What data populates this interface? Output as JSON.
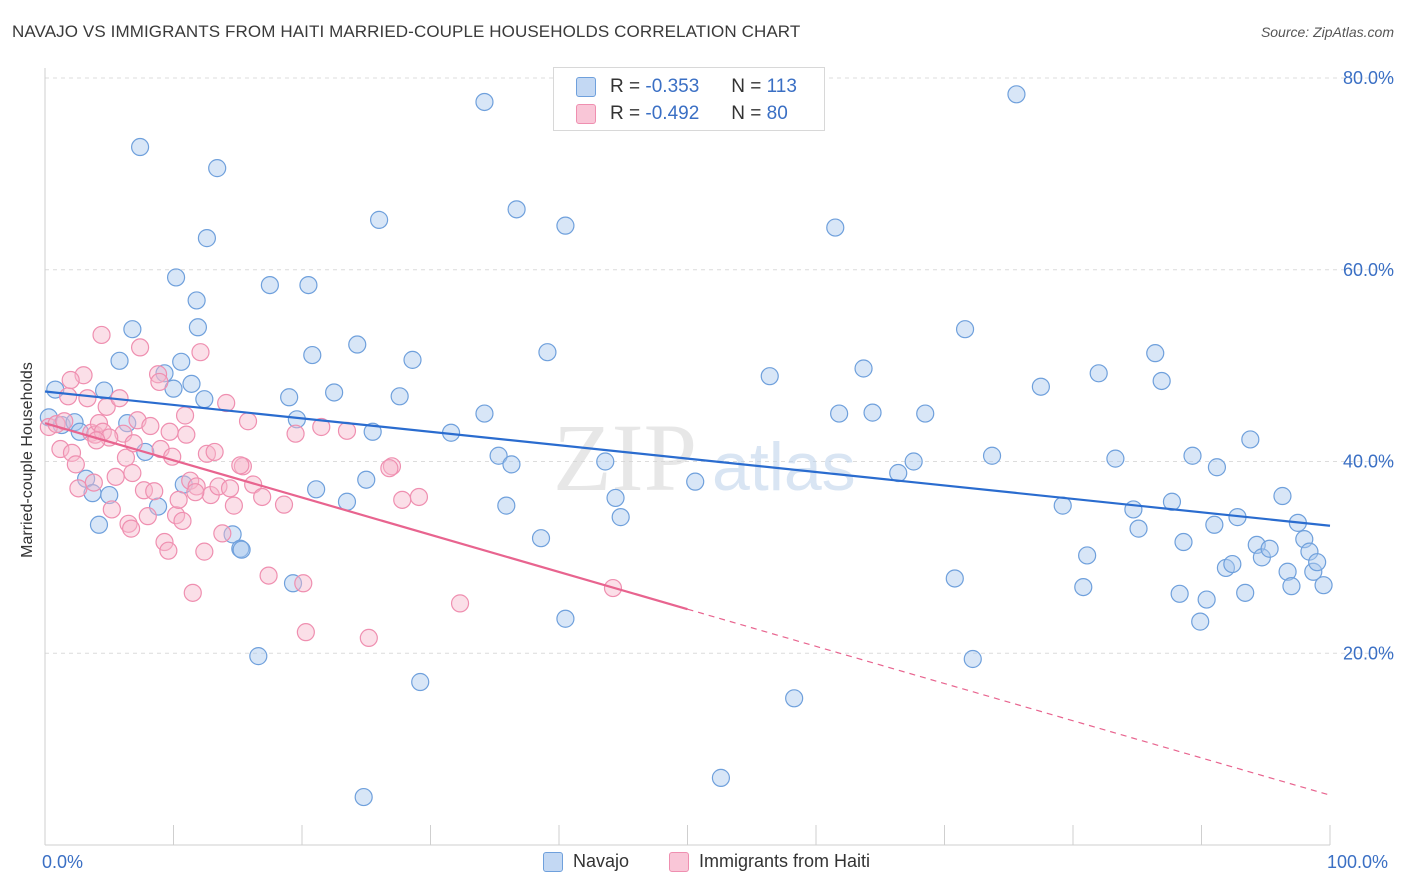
{
  "title": "NAVAJO VS IMMIGRANTS FROM HAITI MARRIED-COUPLE HOUSEHOLDS CORRELATION CHART",
  "source": "Source: ZipAtlas.com",
  "watermark": {
    "zip": "ZIP",
    "atlas": "atlas"
  },
  "legend": {
    "navajo": {
      "r_label": "R =",
      "r_value": "-0.353",
      "n_label": "N =",
      "n_value": "113"
    },
    "haiti": {
      "r_label": "R =",
      "r_value": "-0.492",
      "n_label": "N =",
      "n_value": "80"
    }
  },
  "colors": {
    "navajo": "#6fa0dc",
    "navajo_line": "#2a6ccf",
    "haiti": "#ef8fb0",
    "haiti_line": "#e8648f",
    "axis_text": "#3a6fc4"
  },
  "chart_data": {
    "type": "scatter",
    "title": "NAVAJO VS IMMIGRANTS FROM HAITI MARRIED-COUPLE HOUSEHOLDS CORRELATION CHART",
    "xlabel": "",
    "ylabel": "Married-couple Households",
    "xlim": [
      0,
      100
    ],
    "ylim": [
      0,
      80
    ],
    "x_tick_labels": [
      "0.0%",
      "100.0%"
    ],
    "y_ticks": [
      20,
      40,
      60,
      80
    ],
    "y_tick_labels": [
      "20.0%",
      "40.0%",
      "60.0%",
      "80.0%"
    ],
    "grid": true,
    "legend_position": "top-center",
    "series": [
      {
        "name": "Navajo",
        "trend": {
          "x": [
            0,
            100
          ],
          "y": [
            47.3,
            33.3
          ],
          "dashed_from": null
        },
        "points": [
          [
            0.3,
            44.6
          ],
          [
            0.8,
            47.5
          ],
          [
            1.3,
            43.8
          ],
          [
            2.3,
            44.1
          ],
          [
            2.7,
            43.1
          ],
          [
            3.2,
            38.2
          ],
          [
            3.7,
            36.7
          ],
          [
            4.2,
            33.4
          ],
          [
            4.6,
            47.4
          ],
          [
            5.0,
            36.5
          ],
          [
            5.8,
            50.5
          ],
          [
            6.4,
            44.0
          ],
          [
            6.8,
            53.8
          ],
          [
            7.8,
            41.0
          ],
          [
            8.8,
            35.3
          ],
          [
            9.3,
            49.2
          ],
          [
            10.0,
            47.6
          ],
          [
            10.6,
            50.4
          ],
          [
            10.8,
            37.6
          ],
          [
            11.4,
            48.1
          ],
          [
            11.9,
            54.0
          ],
          [
            10.2,
            59.2
          ],
          [
            12.6,
            63.3
          ],
          [
            11.8,
            56.8
          ],
          [
            13.4,
            70.6
          ],
          [
            7.4,
            72.8
          ],
          [
            14.6,
            32.4
          ],
          [
            15.2,
            30.9
          ],
          [
            16.6,
            19.7
          ],
          [
            17.5,
            58.4
          ],
          [
            19.0,
            46.7
          ],
          [
            19.3,
            27.3
          ],
          [
            19.6,
            44.4
          ],
          [
            20.5,
            58.4
          ],
          [
            20.8,
            51.1
          ],
          [
            22.5,
            47.2
          ],
          [
            23.5,
            35.8
          ],
          [
            24.3,
            52.2
          ],
          [
            25.0,
            38.1
          ],
          [
            25.5,
            43.1
          ],
          [
            26.0,
            65.2
          ],
          [
            27.6,
            46.8
          ],
          [
            28.6,
            50.6
          ],
          [
            29.2,
            17.0
          ],
          [
            31.6,
            43.0
          ],
          [
            34.2,
            77.5
          ],
          [
            34.2,
            45.0
          ],
          [
            35.3,
            40.6
          ],
          [
            35.9,
            35.4
          ],
          [
            36.3,
            39.7
          ],
          [
            36.7,
            66.3
          ],
          [
            38.6,
            32.0
          ],
          [
            39.1,
            51.4
          ],
          [
            40.5,
            23.6
          ],
          [
            40.5,
            64.6
          ],
          [
            43.6,
            40.0
          ],
          [
            44.4,
            36.2
          ],
          [
            44.8,
            34.2
          ],
          [
            50.6,
            37.9
          ],
          [
            52.6,
            7.0
          ],
          [
            56.4,
            48.9
          ],
          [
            58.3,
            15.3
          ],
          [
            61.5,
            64.4
          ],
          [
            61.8,
            45.0
          ],
          [
            63.7,
            49.7
          ],
          [
            64.4,
            45.1
          ],
          [
            66.4,
            38.8
          ],
          [
            67.6,
            40.0
          ],
          [
            68.5,
            45.0
          ],
          [
            70.8,
            27.8
          ],
          [
            71.6,
            53.8
          ],
          [
            72.2,
            19.4
          ],
          [
            73.7,
            40.6
          ],
          [
            75.6,
            78.3
          ],
          [
            77.5,
            47.8
          ],
          [
            79.2,
            35.4
          ],
          [
            80.8,
            26.9
          ],
          [
            81.1,
            30.2
          ],
          [
            82.0,
            49.2
          ],
          [
            83.3,
            40.3
          ],
          [
            84.7,
            35.0
          ],
          [
            85.1,
            33.0
          ],
          [
            86.4,
            51.3
          ],
          [
            86.9,
            48.4
          ],
          [
            87.7,
            35.8
          ],
          [
            88.3,
            26.2
          ],
          [
            88.6,
            31.6
          ],
          [
            89.3,
            40.6
          ],
          [
            89.9,
            23.3
          ],
          [
            90.4,
            25.6
          ],
          [
            91.0,
            33.4
          ],
          [
            91.2,
            39.4
          ],
          [
            91.9,
            28.9
          ],
          [
            92.4,
            29.3
          ],
          [
            92.8,
            34.2
          ],
          [
            93.4,
            26.3
          ],
          [
            93.8,
            42.3
          ],
          [
            94.3,
            31.3
          ],
          [
            94.7,
            30.0
          ],
          [
            95.3,
            30.9
          ],
          [
            96.3,
            36.4
          ],
          [
            96.7,
            28.5
          ],
          [
            97.0,
            27.0
          ],
          [
            97.5,
            33.6
          ],
          [
            98.0,
            31.9
          ],
          [
            98.4,
            30.6
          ],
          [
            98.7,
            28.5
          ],
          [
            99.0,
            29.5
          ],
          [
            99.5,
            27.1
          ],
          [
            24.8,
            5.0
          ],
          [
            15.3,
            30.8
          ],
          [
            21.1,
            37.1
          ],
          [
            12.4,
            46.5
          ]
        ]
      },
      {
        "name": "Immigrants from Haiti",
        "trend": {
          "x": [
            0,
            100
          ],
          "y": [
            44.0,
            5.2
          ],
          "dashed_from": 50
        },
        "points": [
          [
            0.3,
            43.6
          ],
          [
            0.9,
            43.9
          ],
          [
            1.2,
            41.3
          ],
          [
            1.5,
            44.2
          ],
          [
            1.8,
            46.8
          ],
          [
            2.1,
            40.9
          ],
          [
            2.4,
            39.7
          ],
          [
            2.6,
            37.2
          ],
          [
            3.0,
            49.0
          ],
          [
            3.3,
            46.6
          ],
          [
            3.6,
            43.0
          ],
          [
            3.9,
            42.8
          ],
          [
            4.2,
            44.0
          ],
          [
            4.5,
            43.1
          ],
          [
            4.4,
            53.2
          ],
          [
            4.8,
            45.7
          ],
          [
            5.2,
            35.0
          ],
          [
            5.5,
            38.4
          ],
          [
            5.8,
            46.6
          ],
          [
            6.1,
            42.9
          ],
          [
            6.3,
            40.4
          ],
          [
            6.5,
            33.5
          ],
          [
            6.7,
            33.0
          ],
          [
            6.9,
            41.9
          ],
          [
            7.2,
            44.3
          ],
          [
            7.4,
            51.9
          ],
          [
            7.7,
            37.0
          ],
          [
            8.0,
            34.3
          ],
          [
            8.2,
            43.7
          ],
          [
            8.5,
            36.9
          ],
          [
            8.8,
            49.1
          ],
          [
            9.0,
            41.3
          ],
          [
            9.3,
            31.6
          ],
          [
            9.6,
            30.7
          ],
          [
            9.9,
            40.5
          ],
          [
            10.2,
            34.4
          ],
          [
            10.4,
            36.0
          ],
          [
            10.7,
            33.8
          ],
          [
            11.0,
            42.8
          ],
          [
            11.3,
            38.0
          ],
          [
            11.5,
            26.3
          ],
          [
            11.8,
            37.4
          ],
          [
            12.1,
            51.4
          ],
          [
            12.4,
            30.6
          ],
          [
            12.6,
            40.8
          ],
          [
            12.9,
            36.5
          ],
          [
            13.2,
            41.0
          ],
          [
            13.5,
            37.4
          ],
          [
            13.8,
            32.5
          ],
          [
            14.1,
            46.1
          ],
          [
            14.4,
            37.2
          ],
          [
            14.7,
            35.4
          ],
          [
            15.4,
            39.5
          ],
          [
            15.8,
            44.2
          ],
          [
            16.2,
            37.6
          ],
          [
            17.4,
            28.1
          ],
          [
            18.6,
            35.5
          ],
          [
            19.5,
            42.9
          ],
          [
            20.1,
            27.3
          ],
          [
            20.3,
            22.2
          ],
          [
            21.5,
            43.6
          ],
          [
            23.5,
            43.2
          ],
          [
            25.2,
            21.6
          ],
          [
            27.0,
            39.5
          ],
          [
            27.8,
            36.0
          ],
          [
            29.1,
            36.3
          ],
          [
            32.3,
            25.2
          ],
          [
            44.2,
            26.8
          ],
          [
            2.0,
            48.5
          ],
          [
            5.0,
            42.5
          ],
          [
            8.9,
            48.3
          ],
          [
            10.9,
            44.8
          ],
          [
            11.7,
            36.8
          ],
          [
            6.8,
            38.8
          ],
          [
            3.8,
            37.8
          ],
          [
            15.2,
            39.6
          ],
          [
            16.9,
            36.3
          ],
          [
            26.8,
            39.3
          ],
          [
            4.0,
            42.2
          ],
          [
            9.7,
            43.1
          ]
        ]
      }
    ]
  }
}
